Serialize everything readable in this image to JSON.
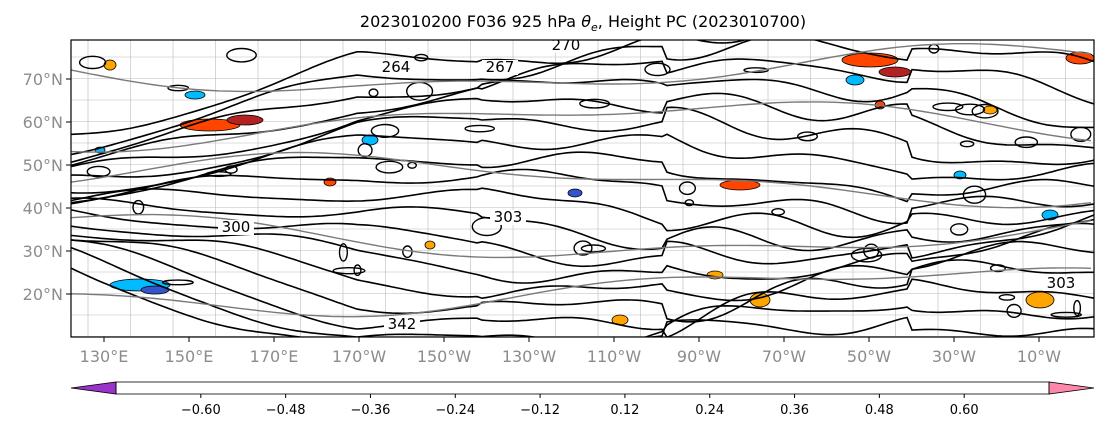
{
  "title_parts": {
    "prefix": "2023010200 F036 925 hPa ",
    "theta": "θ",
    "sub": "e",
    "suffix": ", Height PC (2023010700)"
  },
  "map": {
    "lon_labels": [
      "130°E",
      "150°E",
      "170°E",
      "170°W",
      "150°W",
      "130°W",
      "110°W",
      "90°W",
      "70°W",
      "50°W",
      "30°W",
      "10°W"
    ],
    "lat_labels": [
      "70°N",
      "60°N",
      "50°N",
      "40°N",
      "30°N",
      "20°N"
    ],
    "contour_labels": [
      "270",
      "264",
      "267",
      "303",
      "300",
      "303",
      "342"
    ]
  },
  "colorbar": {
    "tick_labels": [
      "−0.60",
      "−0.48",
      "−0.36",
      "−0.24",
      "−0.12",
      "0.12",
      "0.24",
      "0.36",
      "0.48",
      "0.60"
    ],
    "colors": {
      "under": "#9933cc",
      "bins": [
        "#9933cc",
        "#000088",
        "#3355cc",
        "#00bbff",
        "#aaddff",
        "#ffffff",
        "#ffee88",
        "#ffa500",
        "#ff4500",
        "#b22222",
        "#ff88aa"
      ],
      "over": "#ff88aa"
    }
  }
}
